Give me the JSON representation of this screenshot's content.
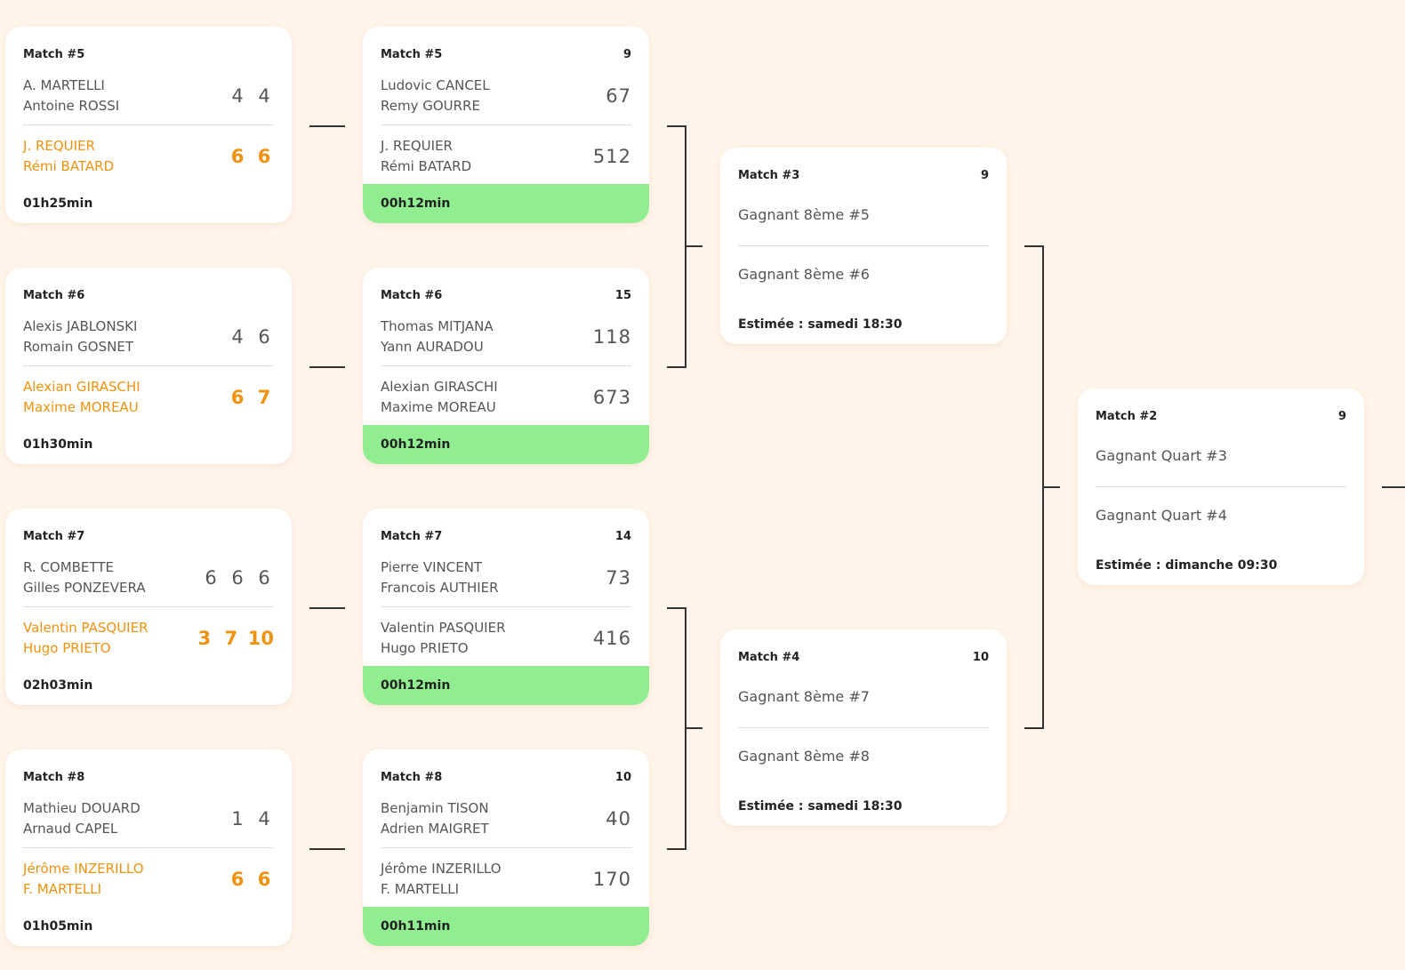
{
  "round1": [
    {
      "label": "Match #5",
      "team1": {
        "p1": "A. MARTELLI",
        "p2": "Antoine ROSSI",
        "scores": [
          "4",
          "4"
        ]
      },
      "team2": {
        "p1": "J. REQUIER",
        "p2": "Rémi BATARD",
        "scores": [
          "6",
          "6"
        ]
      },
      "duration": "01h25min"
    },
    {
      "label": "Match #6",
      "team1": {
        "p1": "Alexis JABLONSKI",
        "p2": "Romain GOSNET",
        "scores": [
          "4",
          "6"
        ]
      },
      "team2": {
        "p1": "Alexian GIRASCHI",
        "p2": "Maxime MOREAU",
        "scores": [
          "6",
          "7"
        ]
      },
      "duration": "01h30min"
    },
    {
      "label": "Match #7",
      "team1": {
        "p1": "R. COMBETTE",
        "p2": "Gilles PONZEVERA",
        "scores": [
          "6",
          "6",
          "6"
        ]
      },
      "team2": {
        "p1": "Valentin PASQUIER",
        "p2": "Hugo PRIETO",
        "scores": [
          "3",
          "7",
          "10"
        ]
      },
      "duration": "02h03min"
    },
    {
      "label": "Match #8",
      "team1": {
        "p1": "Mathieu DOUARD",
        "p2": "Arnaud CAPEL",
        "scores": [
          "1",
          "4"
        ]
      },
      "team2": {
        "p1": "Jérôme INZERILLO",
        "p2": "F. MARTELLI",
        "scores": [
          "6",
          "6"
        ]
      },
      "duration": "01h05min"
    }
  ],
  "round2": [
    {
      "label": "Match #5",
      "court": "9",
      "team1": {
        "p1": "Ludovic CANCEL",
        "p2": "Remy GOURRE",
        "total": "67"
      },
      "team2": {
        "p1": "J. REQUIER",
        "p2": "Rémi BATARD",
        "total": "512"
      },
      "timer": "00h12min"
    },
    {
      "label": "Match #6",
      "court": "15",
      "team1": {
        "p1": "Thomas MITJANA",
        "p2": "Yann AURADOU",
        "total": "118"
      },
      "team2": {
        "p1": "Alexian GIRASCHI",
        "p2": "Maxime MOREAU",
        "total": "673"
      },
      "timer": "00h12min"
    },
    {
      "label": "Match #7",
      "court": "14",
      "team1": {
        "p1": "Pierre VINCENT",
        "p2": "Francois AUTHIER",
        "total": "73"
      },
      "team2": {
        "p1": "Valentin PASQUIER",
        "p2": "Hugo PRIETO",
        "total": "416"
      },
      "timer": "00h12min"
    },
    {
      "label": "Match #8",
      "court": "10",
      "team1": {
        "p1": "Benjamin TISON",
        "p2": "Adrien MAIGRET",
        "total": "40"
      },
      "team2": {
        "p1": "Jérôme INZERILLO",
        "p2": "F. MARTELLI",
        "total": "170"
      },
      "timer": "00h11min"
    }
  ],
  "quarters": [
    {
      "label": "Match #3",
      "court": "9",
      "slot1": "Gagnant 8ème #5",
      "slot2": "Gagnant 8ème #6",
      "estimate": "Estimée : samedi 18:30"
    },
    {
      "label": "Match #4",
      "court": "10",
      "slot1": "Gagnant 8ème #7",
      "slot2": "Gagnant 8ème #8",
      "estimate": "Estimée : samedi 18:30"
    }
  ],
  "semi": {
    "label": "Match #2",
    "court": "9",
    "slot1": "Gagnant Quart #3",
    "slot2": "Gagnant Quart #4",
    "estimate": "Estimée : dimanche 09:30"
  },
  "colors": {
    "winner": "#f0920e",
    "live": "#90ee90",
    "background": "#fff5ea"
  }
}
